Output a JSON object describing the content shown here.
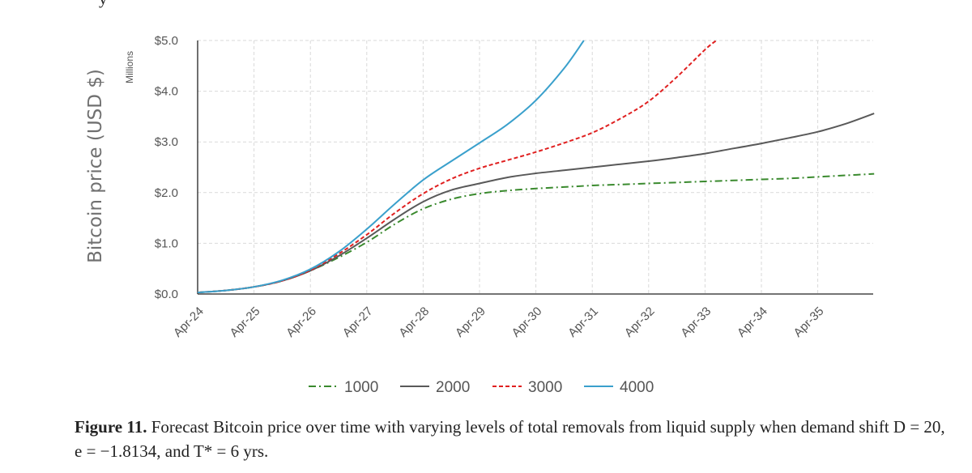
{
  "top_fragment": "y",
  "caption": {
    "label": "Figure 11.",
    "text": " Forecast Bitcoin price over time with varying levels of total removals from liquid supply when demand shift D = 20, e = −1.8134, and T* = 6 yrs."
  },
  "chart_data": {
    "type": "line",
    "title": "",
    "xlabel": "",
    "ylabel": "Bitcoin price (USD $)",
    "y_units": "Millions",
    "x_ticks": [
      "Apr-24",
      "Apr-25",
      "Apr-26",
      "Apr-27",
      "Apr-28",
      "Apr-29",
      "Apr-30",
      "Apr-31",
      "Apr-32",
      "Apr-33",
      "Apr-34",
      "Apr-35"
    ],
    "y_tick_labels": [
      "$0.0",
      "$1.0",
      "$2.0",
      "$3.0",
      "$4.0",
      "$5.0"
    ],
    "y_tick_values": [
      0,
      1,
      2,
      3,
      4,
      5
    ],
    "xlim": [
      0,
      12
    ],
    "ylim": [
      0,
      5
    ],
    "grid": true,
    "legend_position": "bottom",
    "series": [
      {
        "name": "1000",
        "color": "#3a8a2e",
        "style": "dashdot",
        "x": [
          0,
          0.5,
          1,
          1.5,
          2,
          2.5,
          3,
          3.5,
          4,
          4.5,
          5,
          5.5,
          6,
          6.5,
          7,
          7.5,
          8,
          8.5,
          9,
          9.5,
          10,
          10.5,
          11,
          11.5,
          12
        ],
        "y": [
          0.03,
          0.07,
          0.14,
          0.26,
          0.46,
          0.72,
          1.02,
          1.38,
          1.68,
          1.87,
          1.98,
          2.04,
          2.08,
          2.11,
          2.14,
          2.16,
          2.18,
          2.2,
          2.22,
          2.24,
          2.26,
          2.28,
          2.31,
          2.34,
          2.37
        ]
      },
      {
        "name": "2000",
        "color": "#595959",
        "style": "solid",
        "x": [
          0,
          0.5,
          1,
          1.5,
          2,
          2.5,
          3,
          3.5,
          4,
          4.5,
          5,
          5.5,
          6,
          6.5,
          7,
          7.5,
          8,
          8.5,
          9,
          9.5,
          10,
          10.5,
          11,
          11.5,
          12
        ],
        "y": [
          0.03,
          0.07,
          0.14,
          0.26,
          0.46,
          0.75,
          1.1,
          1.48,
          1.82,
          2.05,
          2.18,
          2.3,
          2.38,
          2.44,
          2.5,
          2.56,
          2.62,
          2.69,
          2.77,
          2.87,
          2.97,
          3.08,
          3.2,
          3.36,
          3.56
        ]
      },
      {
        "name": "3000",
        "color": "#e02020",
        "style": "dashed",
        "x": [
          0,
          0.5,
          1,
          1.5,
          2,
          2.5,
          3,
          3.5,
          4,
          4.5,
          5,
          5.5,
          6,
          6.5,
          7,
          7.5,
          8,
          8.5,
          9,
          9.2
        ],
        "y": [
          0.03,
          0.07,
          0.14,
          0.26,
          0.47,
          0.79,
          1.17,
          1.6,
          1.98,
          2.27,
          2.48,
          2.64,
          2.8,
          2.98,
          3.18,
          3.46,
          3.8,
          4.28,
          4.82,
          5.0
        ]
      },
      {
        "name": "4000",
        "color": "#3aa0cc",
        "style": "solid",
        "x": [
          0,
          0.5,
          1,
          1.5,
          2,
          2.5,
          3,
          3.5,
          4,
          4.5,
          5,
          5.5,
          6,
          6.5,
          6.85
        ],
        "y": [
          0.03,
          0.07,
          0.14,
          0.27,
          0.49,
          0.83,
          1.28,
          1.78,
          2.25,
          2.62,
          2.98,
          3.35,
          3.82,
          4.45,
          5.0
        ]
      }
    ]
  }
}
